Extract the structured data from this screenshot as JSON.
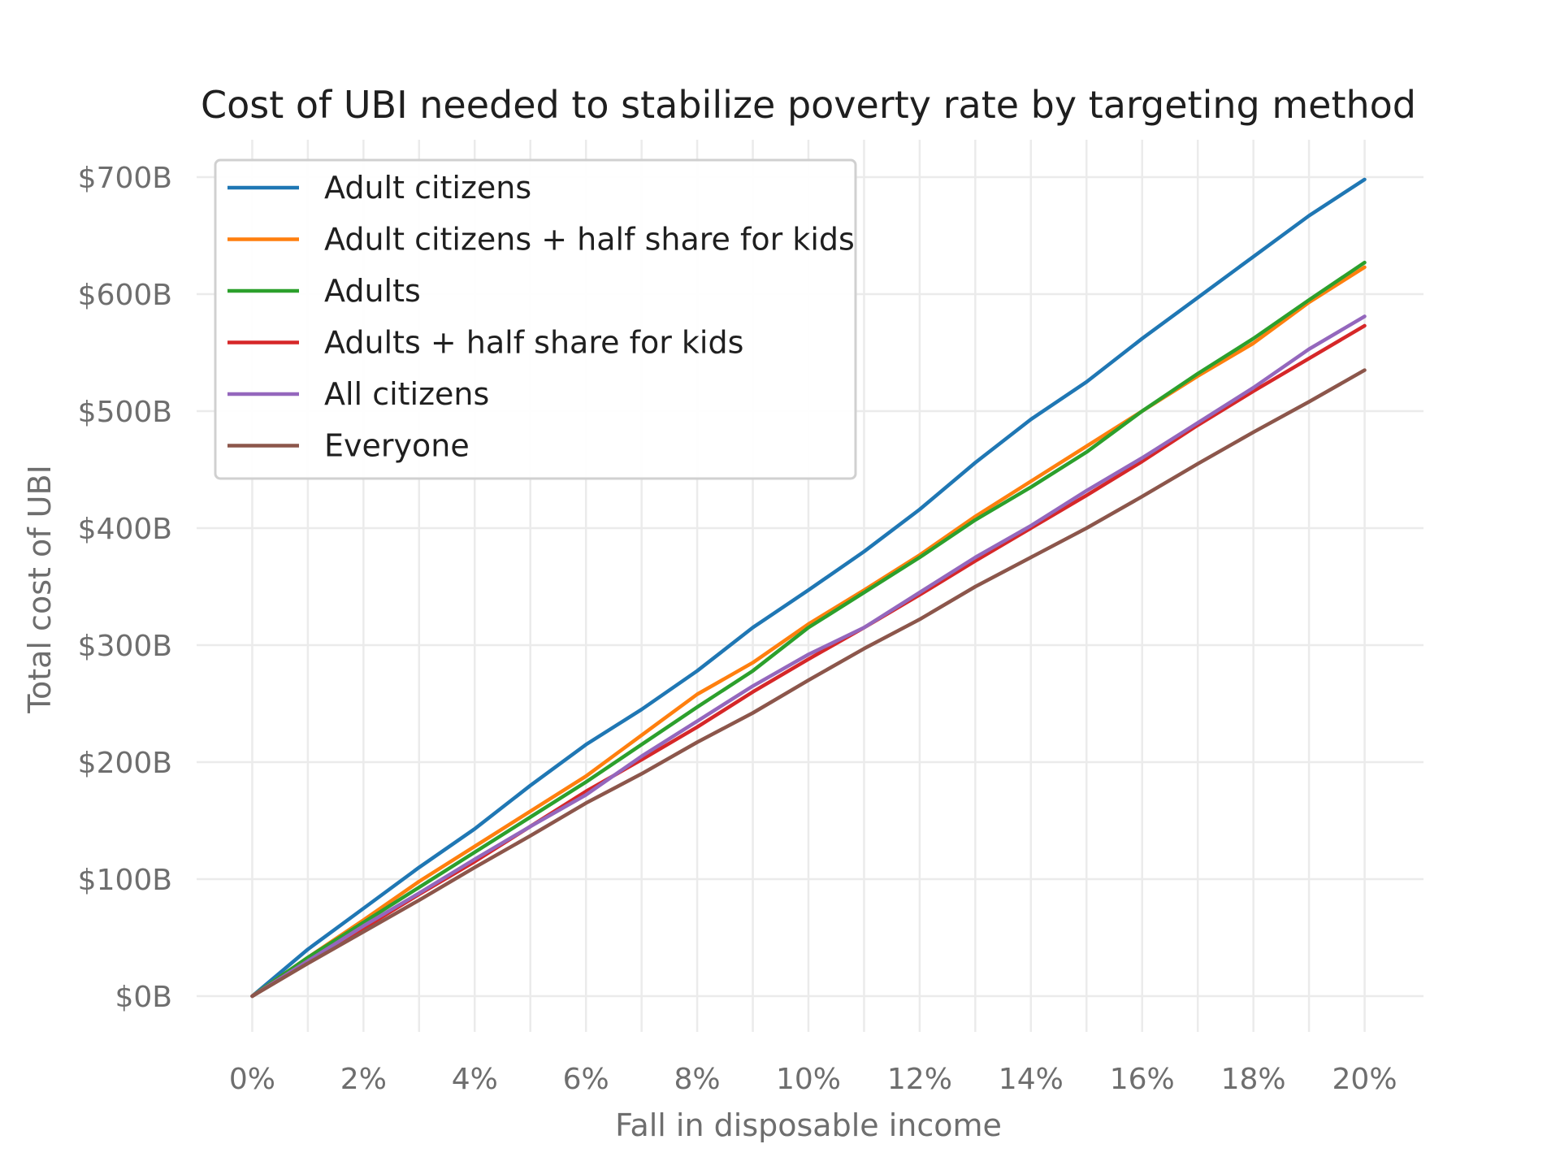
{
  "chart_data": {
    "type": "line",
    "title": "Cost of UBI needed to stabilize poverty rate by targeting method",
    "xlabel": "Fall in disposable income",
    "ylabel": "Total cost of UBI",
    "x": [
      0,
      1,
      2,
      3,
      4,
      5,
      6,
      7,
      8,
      9,
      10,
      11,
      12,
      13,
      14,
      15,
      16,
      17,
      18,
      19,
      20
    ],
    "x_ticks": [
      0,
      2,
      4,
      6,
      8,
      10,
      12,
      14,
      16,
      18,
      20
    ],
    "x_tick_labels": [
      "0%",
      "2%",
      "4%",
      "6%",
      "8%",
      "10%",
      "12%",
      "14%",
      "16%",
      "18%",
      "20%"
    ],
    "y_ticks": [
      0,
      100,
      200,
      300,
      400,
      500,
      600,
      700
    ],
    "y_tick_labels": [
      "$0B",
      "$100B",
      "$200B",
      "$300B",
      "$400B",
      "$500B",
      "$600B",
      "$700B"
    ],
    "xlim": [
      -1,
      21
    ],
    "ylim": [
      -25,
      725
    ],
    "grid": true,
    "legend_position": "top-left",
    "series": [
      {
        "name": "Adult citizens",
        "color": "#1f77b4",
        "values": [
          0,
          40,
          75,
          110,
          143,
          180,
          215,
          245,
          278,
          315,
          347,
          380,
          416,
          456,
          493,
          525,
          562,
          597,
          632,
          667,
          698
        ]
      },
      {
        "name": "Adult citizens + half share for kids",
        "color": "#ff7f0e",
        "values": [
          0,
          33,
          65,
          98,
          128,
          158,
          188,
          223,
          258,
          285,
          318,
          347,
          377,
          410,
          440,
          470,
          500,
          530,
          558,
          593,
          623
        ]
      },
      {
        "name": "Adults",
        "color": "#2ca02c",
        "values": [
          0,
          33,
          63,
          93,
          123,
          153,
          183,
          215,
          247,
          278,
          315,
          345,
          375,
          407,
          435,
          465,
          500,
          532,
          562,
          595,
          627
        ]
      },
      {
        "name": "Adults + half share for kids",
        "color": "#d62728",
        "values": [
          0,
          30,
          58,
          87,
          115,
          145,
          175,
          202,
          230,
          260,
          288,
          315,
          343,
          372,
          400,
          428,
          457,
          488,
          517,
          545,
          573
        ]
      },
      {
        "name": "All citizens",
        "color": "#9467bd",
        "values": [
          0,
          30,
          60,
          88,
          117,
          145,
          172,
          205,
          235,
          265,
          292,
          315,
          345,
          375,
          402,
          432,
          460,
          490,
          520,
          553,
          581
        ]
      },
      {
        "name": "Everyone",
        "color": "#8c564b",
        "values": [
          0,
          28,
          55,
          82,
          110,
          137,
          165,
          190,
          217,
          242,
          270,
          297,
          322,
          350,
          375,
          400,
          427,
          455,
          482,
          508,
          535
        ]
      }
    ]
  }
}
